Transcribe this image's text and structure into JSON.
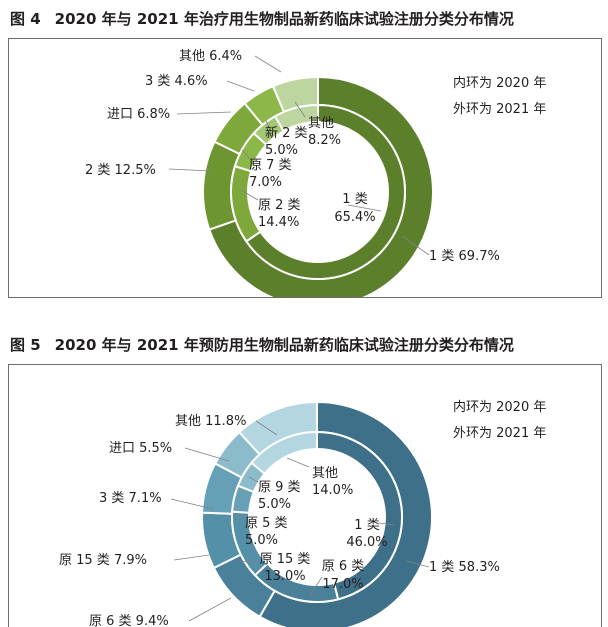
{
  "figures": [
    {
      "id": "fig4",
      "number": "图 4",
      "title": "2020 年与 2021 年治疗用生物制品新药临床试验注册分类分布情况",
      "legend": [
        "内环为 2020 年",
        "外环为 2021 年"
      ],
      "colors": [
        "#5c7f2c",
        "#6d9632",
        "#7fa83c",
        "#8cb84a",
        "#a4c776",
        "#bdd6a0"
      ],
      "chart_data": {
        "type": "donut",
        "title": "2020 年与 2021 年治疗用生物制品新药临床试验注册分类分布情况",
        "series": [
          {
            "name": "2021 年",
            "ring": "outer",
            "labels": [
              "1 类",
              "2 类",
              "进口",
              "3 类",
              "其他"
            ],
            "values": [
              69.7,
              12.5,
              6.8,
              4.6,
              6.4
            ],
            "label_text": [
              "1 类 69.7%",
              "2 类 12.5%",
              "进口 6.8%",
              "3 类 4.6%",
              "其他 6.4%"
            ]
          },
          {
            "name": "2020 年",
            "ring": "inner",
            "labels": [
              "1 类",
              "原 2 类",
              "原 7 类",
              "新 2 类",
              "其他"
            ],
            "values": [
              65.4,
              14.4,
              7.0,
              5.0,
              8.2
            ],
            "label_text": [
              [
                "1 类",
                "65.4%"
              ],
              [
                "原 2 类",
                "14.4%"
              ],
              [
                "原 7 类",
                "7.0%"
              ],
              [
                "新 2 类",
                "5.0%"
              ],
              [
                "其他",
                "8.2%"
              ]
            ]
          }
        ]
      }
    },
    {
      "id": "fig5",
      "number": "图 5",
      "title": "2020 年与 2021 年预防用生物制品新药临床试验注册分类分布情况",
      "legend": [
        "内环为 2020 年",
        "外环为 2021 年"
      ],
      "colors": [
        "#3e7189",
        "#4a8099",
        "#5590a9",
        "#66a0b6",
        "#8cbccb",
        "#b3d6e0"
      ],
      "chart_data": {
        "type": "donut",
        "title": "2020 年与 2021 年预防用生物制品新药临床试验注册分类分布情况",
        "series": [
          {
            "name": "2021 年",
            "ring": "outer",
            "labels": [
              "1 类",
              "原 6 类",
              "原 15 类",
              "3 类",
              "进口",
              "其他"
            ],
            "values": [
              58.3,
              9.4,
              7.9,
              7.1,
              5.5,
              11.8
            ],
            "label_text": [
              "1 类 58.3%",
              "原 6 类 9.4%",
              "原 15 类 7.9%",
              "3 类 7.1%",
              "进口 5.5%",
              "其他 11.8%"
            ]
          },
          {
            "name": "2020 年",
            "ring": "inner",
            "labels": [
              "1 类",
              "原 6 类",
              "原 15 类",
              "原 5 类",
              "原 9 类",
              "其他"
            ],
            "values": [
              46.0,
              17.0,
              13.0,
              5.0,
              5.0,
              14.0
            ],
            "label_text": [
              [
                "1 类",
                "46.0%"
              ],
              [
                "原 6 类",
                "17.0%"
              ],
              [
                "原 15 类",
                "13.0%"
              ],
              [
                "原 5 类",
                "5.0%"
              ],
              [
                "原 9 类",
                "5.0%"
              ],
              [
                "其他",
                "14.0%"
              ]
            ]
          }
        ]
      }
    }
  ]
}
